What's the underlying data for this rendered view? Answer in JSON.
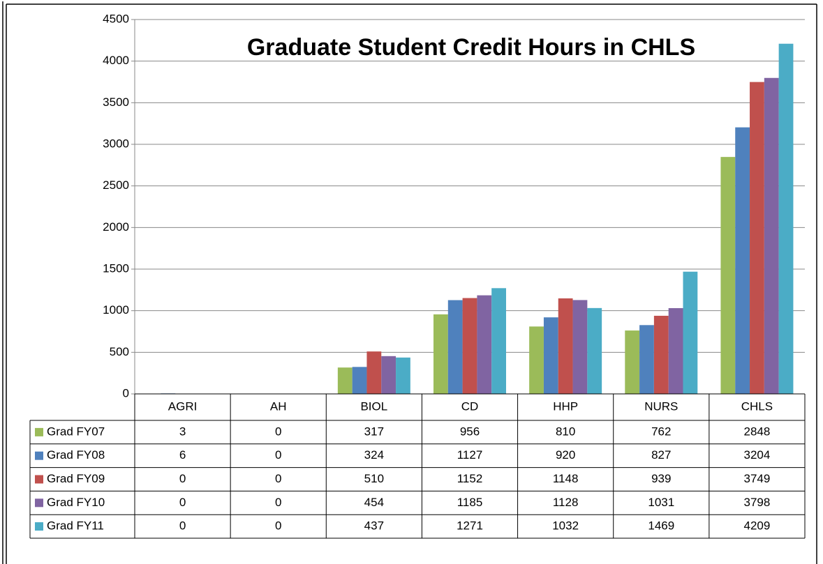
{
  "chart_data": {
    "type": "bar",
    "title": "Graduate Student Credit Hours in CHLS",
    "categories": [
      "AGRI",
      "AH",
      "BIOL",
      "CD",
      "HHP",
      "NURS",
      "CHLS"
    ],
    "series": [
      {
        "name": "Grad FY07",
        "color": "#9bbb59",
        "values": [
          3,
          0,
          317,
          956,
          810,
          762,
          2848
        ]
      },
      {
        "name": "Grad FY08",
        "color": "#4f81bd",
        "values": [
          6,
          0,
          324,
          1127,
          920,
          827,
          3204
        ]
      },
      {
        "name": "Grad FY09",
        "color": "#c0504d",
        "values": [
          0,
          0,
          510,
          1152,
          1148,
          939,
          3749
        ]
      },
      {
        "name": "Grad FY10",
        "color": "#8064a2",
        "values": [
          0,
          0,
          454,
          1185,
          1128,
          1031,
          3798
        ]
      },
      {
        "name": "Grad FY11",
        "color": "#4bacc6",
        "values": [
          0,
          0,
          437,
          1271,
          1032,
          1469,
          4209
        ]
      }
    ],
    "ylim": [
      0,
      4500
    ],
    "yticks": [
      0,
      500,
      1000,
      1500,
      2000,
      2500,
      3000,
      3500,
      4000,
      4500
    ],
    "grid": true
  }
}
